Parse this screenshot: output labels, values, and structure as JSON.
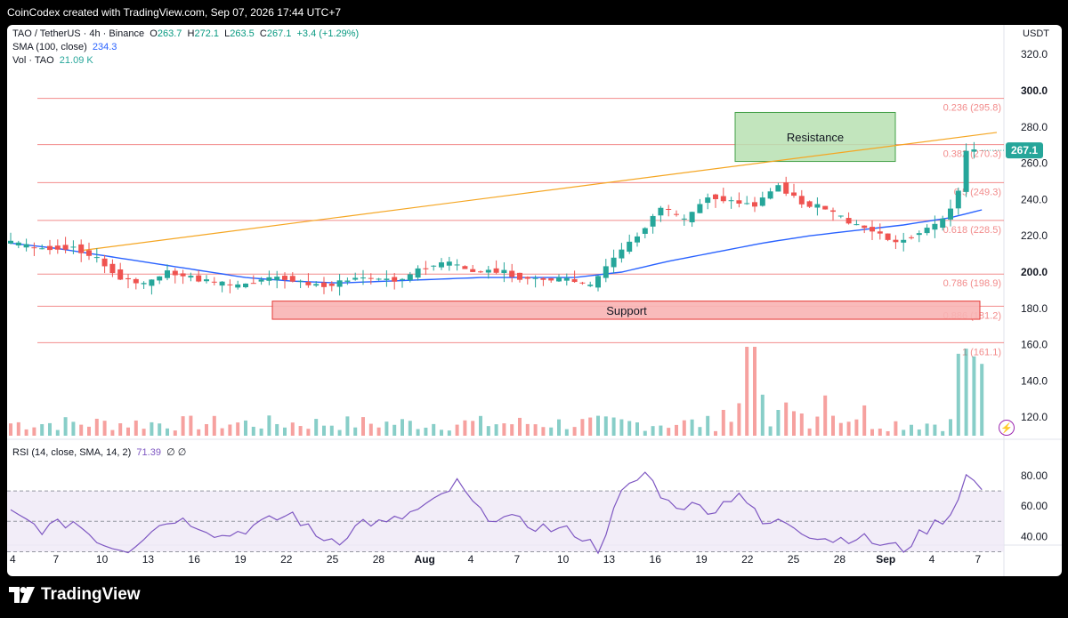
{
  "header": {
    "credit": "CoinCodex created with TradingView.com, Sep 07, 2026 17:44 UTC+7"
  },
  "legend": {
    "symbol": "TAO / TetherUS · 4h · Binance",
    "o_label": "O",
    "o": "263.7",
    "h_label": "H",
    "h": "272.1",
    "l_label": "L",
    "l": "263.5",
    "c_label": "C",
    "c": "267.1",
    "change": "+3.4 (+1.29%)",
    "sma_label": "SMA (100, close)",
    "sma_value": "234.3",
    "vol_label": "Vol · TAO",
    "vol_value": "21.09 K"
  },
  "rsi_legend": {
    "label": "RSI (14, close, SMA, 14, 2)",
    "value": "71.39",
    "extra": "∅ ∅"
  },
  "currency": "USDT",
  "brand": {
    "name": "TradingView"
  },
  "colors": {
    "up": "#26a69a",
    "down": "#ef5350",
    "sma": "#2962ff",
    "fib": "#f28b8b",
    "trendline": "#f5a623",
    "resistance_fill": "#b7e1b1",
    "support_fill": "#f8b4b4",
    "rsi": "#7e57c2"
  },
  "chart_data": {
    "type": "candlestick",
    "price_axis": {
      "ticks": [
        120,
        140,
        160,
        180,
        200,
        220,
        240,
        260,
        280,
        300,
        320
      ],
      "emphasized": [
        200,
        300
      ]
    },
    "current_price": "267.1",
    "x_ticks": [
      "4",
      "7",
      "10",
      "13",
      "16",
      "19",
      "22",
      "25",
      "28",
      "Aug",
      "4",
      "7",
      "10",
      "13",
      "16",
      "19",
      "22",
      "25",
      "28",
      "Sep",
      "4",
      "7"
    ],
    "fib_levels": [
      {
        "ratio": "0.236",
        "price": 295.8,
        "label": "0.236 (295.8)"
      },
      {
        "ratio": "0.382",
        "price": 270.3,
        "label": "0.382 (270.3)"
      },
      {
        "ratio": "0.5",
        "price": 249.3,
        "label": "0.5 (249.3)"
      },
      {
        "ratio": "0.618",
        "price": 228.5,
        "label": "0.618 (228.5)"
      },
      {
        "ratio": "0.786",
        "price": 198.9,
        "label": "0.786 (198.9)"
      },
      {
        "ratio": "0.886",
        "price": 181.2,
        "label": "0.886 (181.2)"
      },
      {
        "ratio": "1",
        "price": 161.1,
        "label": "1 (161.1)"
      }
    ],
    "zones": [
      {
        "name": "Resistance",
        "price_top": 288,
        "price_bottom": 261
      },
      {
        "name": "Support",
        "price_top": 184,
        "price_bottom": 174
      }
    ],
    "trendline": {
      "from": {
        "date": "Jul 9",
        "price": 212
      },
      "to": {
        "date": "Sep 7",
        "price": 277
      }
    },
    "price_path": [
      [
        0,
        217
      ],
      [
        4,
        213
      ],
      [
        9,
        214
      ],
      [
        12,
        207
      ],
      [
        15,
        197
      ],
      [
        18,
        193
      ],
      [
        21,
        200
      ],
      [
        24,
        197
      ],
      [
        27,
        194
      ],
      [
        30,
        192
      ],
      [
        33,
        196
      ],
      [
        36,
        197
      ],
      [
        39,
        193
      ],
      [
        42,
        193
      ],
      [
        45,
        197
      ],
      [
        48,
        196
      ],
      [
        51,
        196
      ],
      [
        54,
        203
      ],
      [
        57,
        205
      ],
      [
        60,
        200
      ],
      [
        63,
        201
      ],
      [
        66,
        197
      ],
      [
        69,
        196
      ],
      [
        72,
        196
      ],
      [
        75,
        192
      ],
      [
        78,
        208
      ],
      [
        81,
        220
      ],
      [
        84,
        236
      ],
      [
        87,
        228
      ],
      [
        90,
        242
      ],
      [
        93,
        239
      ],
      [
        96,
        237
      ],
      [
        99,
        248
      ],
      [
        102,
        238
      ],
      [
        105,
        235
      ],
      [
        108,
        227
      ],
      [
        111,
        223
      ],
      [
        114,
        216
      ],
      [
        117,
        222
      ],
      [
        120,
        228
      ],
      [
        122,
        244
      ],
      [
        123,
        267
      ]
    ],
    "sma_path": [
      [
        0,
        216
      ],
      [
        6,
        213
      ],
      [
        12,
        209
      ],
      [
        18,
        205
      ],
      [
        24,
        201
      ],
      [
        30,
        197
      ],
      [
        36,
        195
      ],
      [
        42,
        194
      ],
      [
        48,
        195
      ],
      [
        54,
        196
      ],
      [
        60,
        197
      ],
      [
        66,
        197
      ],
      [
        72,
        197
      ],
      [
        78,
        200
      ],
      [
        84,
        206
      ],
      [
        90,
        211
      ],
      [
        96,
        216
      ],
      [
        102,
        220
      ],
      [
        108,
        223
      ],
      [
        114,
        226
      ],
      [
        120,
        230
      ],
      [
        124,
        234.3
      ]
    ],
    "volume": {
      "axis": "none",
      "last": "21.09 K"
    },
    "rsi": {
      "ticks": [
        40,
        60,
        80
      ],
      "bands": [
        30,
        50,
        70
      ],
      "value": 71.39,
      "path": [
        [
          0,
          55
        ],
        [
          4,
          45
        ],
        [
          8,
          50
        ],
        [
          12,
          35
        ],
        [
          15,
          32
        ],
        [
          18,
          45
        ],
        [
          21,
          52
        ],
        [
          24,
          48
        ],
        [
          27,
          40
        ],
        [
          30,
          45
        ],
        [
          33,
          50
        ],
        [
          36,
          55
        ],
        [
          39,
          40
        ],
        [
          42,
          38
        ],
        [
          45,
          50
        ],
        [
          48,
          48
        ],
        [
          51,
          55
        ],
        [
          54,
          62
        ],
        [
          57,
          75
        ],
        [
          60,
          55
        ],
        [
          63,
          52
        ],
        [
          66,
          48
        ],
        [
          69,
          45
        ],
        [
          72,
          43
        ],
        [
          75,
          32
        ],
        [
          78,
          68
        ],
        [
          81,
          82
        ],
        [
          84,
          62
        ],
        [
          87,
          60
        ],
        [
          90,
          58
        ],
        [
          93,
          70
        ],
        [
          96,
          48
        ],
        [
          99,
          50
        ],
        [
          102,
          42
        ],
        [
          105,
          38
        ],
        [
          108,
          40
        ],
        [
          111,
          35
        ],
        [
          114,
          32
        ],
        [
          117,
          45
        ],
        [
          120,
          55
        ],
        [
          122,
          80
        ],
        [
          124,
          71.39
        ]
      ]
    }
  }
}
